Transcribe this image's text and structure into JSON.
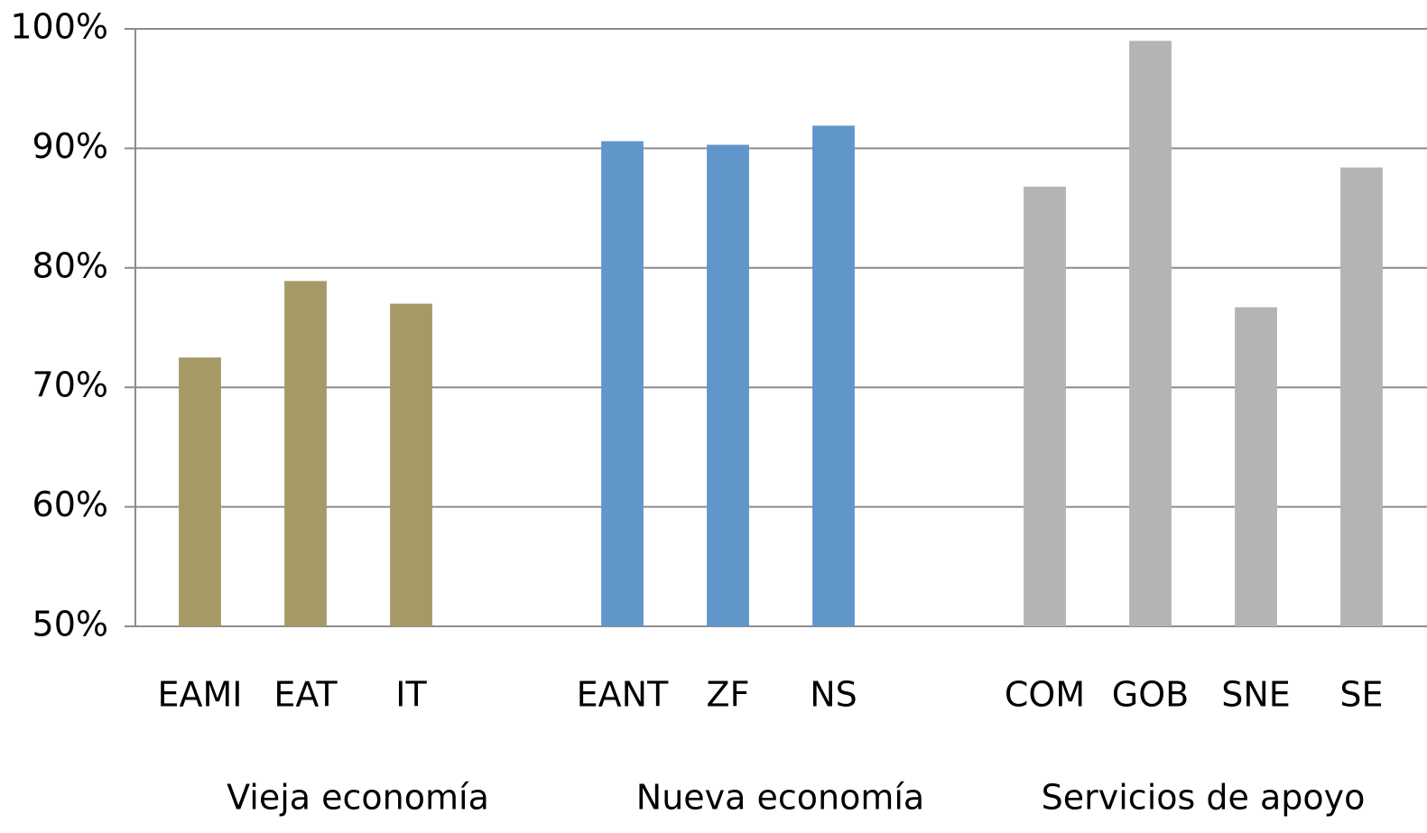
{
  "chart_data": {
    "type": "bar",
    "categories": [
      "EAMI",
      "EAT",
      "IT",
      null,
      "EANT",
      "ZF",
      "NS",
      null,
      "COM",
      "GOB",
      "SNE",
      "SE"
    ],
    "values": [
      72.5,
      78.9,
      77.0,
      null,
      90.6,
      90.3,
      91.9,
      null,
      86.8,
      99.0,
      76.7,
      88.4
    ],
    "colors": [
      "#a59a66",
      "#a59a66",
      "#a59a66",
      null,
      "#6096c9",
      "#6096c9",
      "#6096c9",
      null,
      "#b4b4b4",
      "#b4b4b4",
      "#b4b4b4",
      "#b4b4b4"
    ],
    "groups": [
      "Vieja economía",
      "Nueva economía",
      "Servicios de apoyo"
    ],
    "ylim": [
      50,
      100
    ],
    "yticks": [
      {
        "value": 50,
        "label": "50%"
      },
      {
        "value": 60,
        "label": "60%"
      },
      {
        "value": 70,
        "label": "70%"
      },
      {
        "value": 80,
        "label": "80%"
      },
      {
        "value": 90,
        "label": "90%"
      },
      {
        "value": 100,
        "label": "100%"
      }
    ],
    "grid": true
  }
}
